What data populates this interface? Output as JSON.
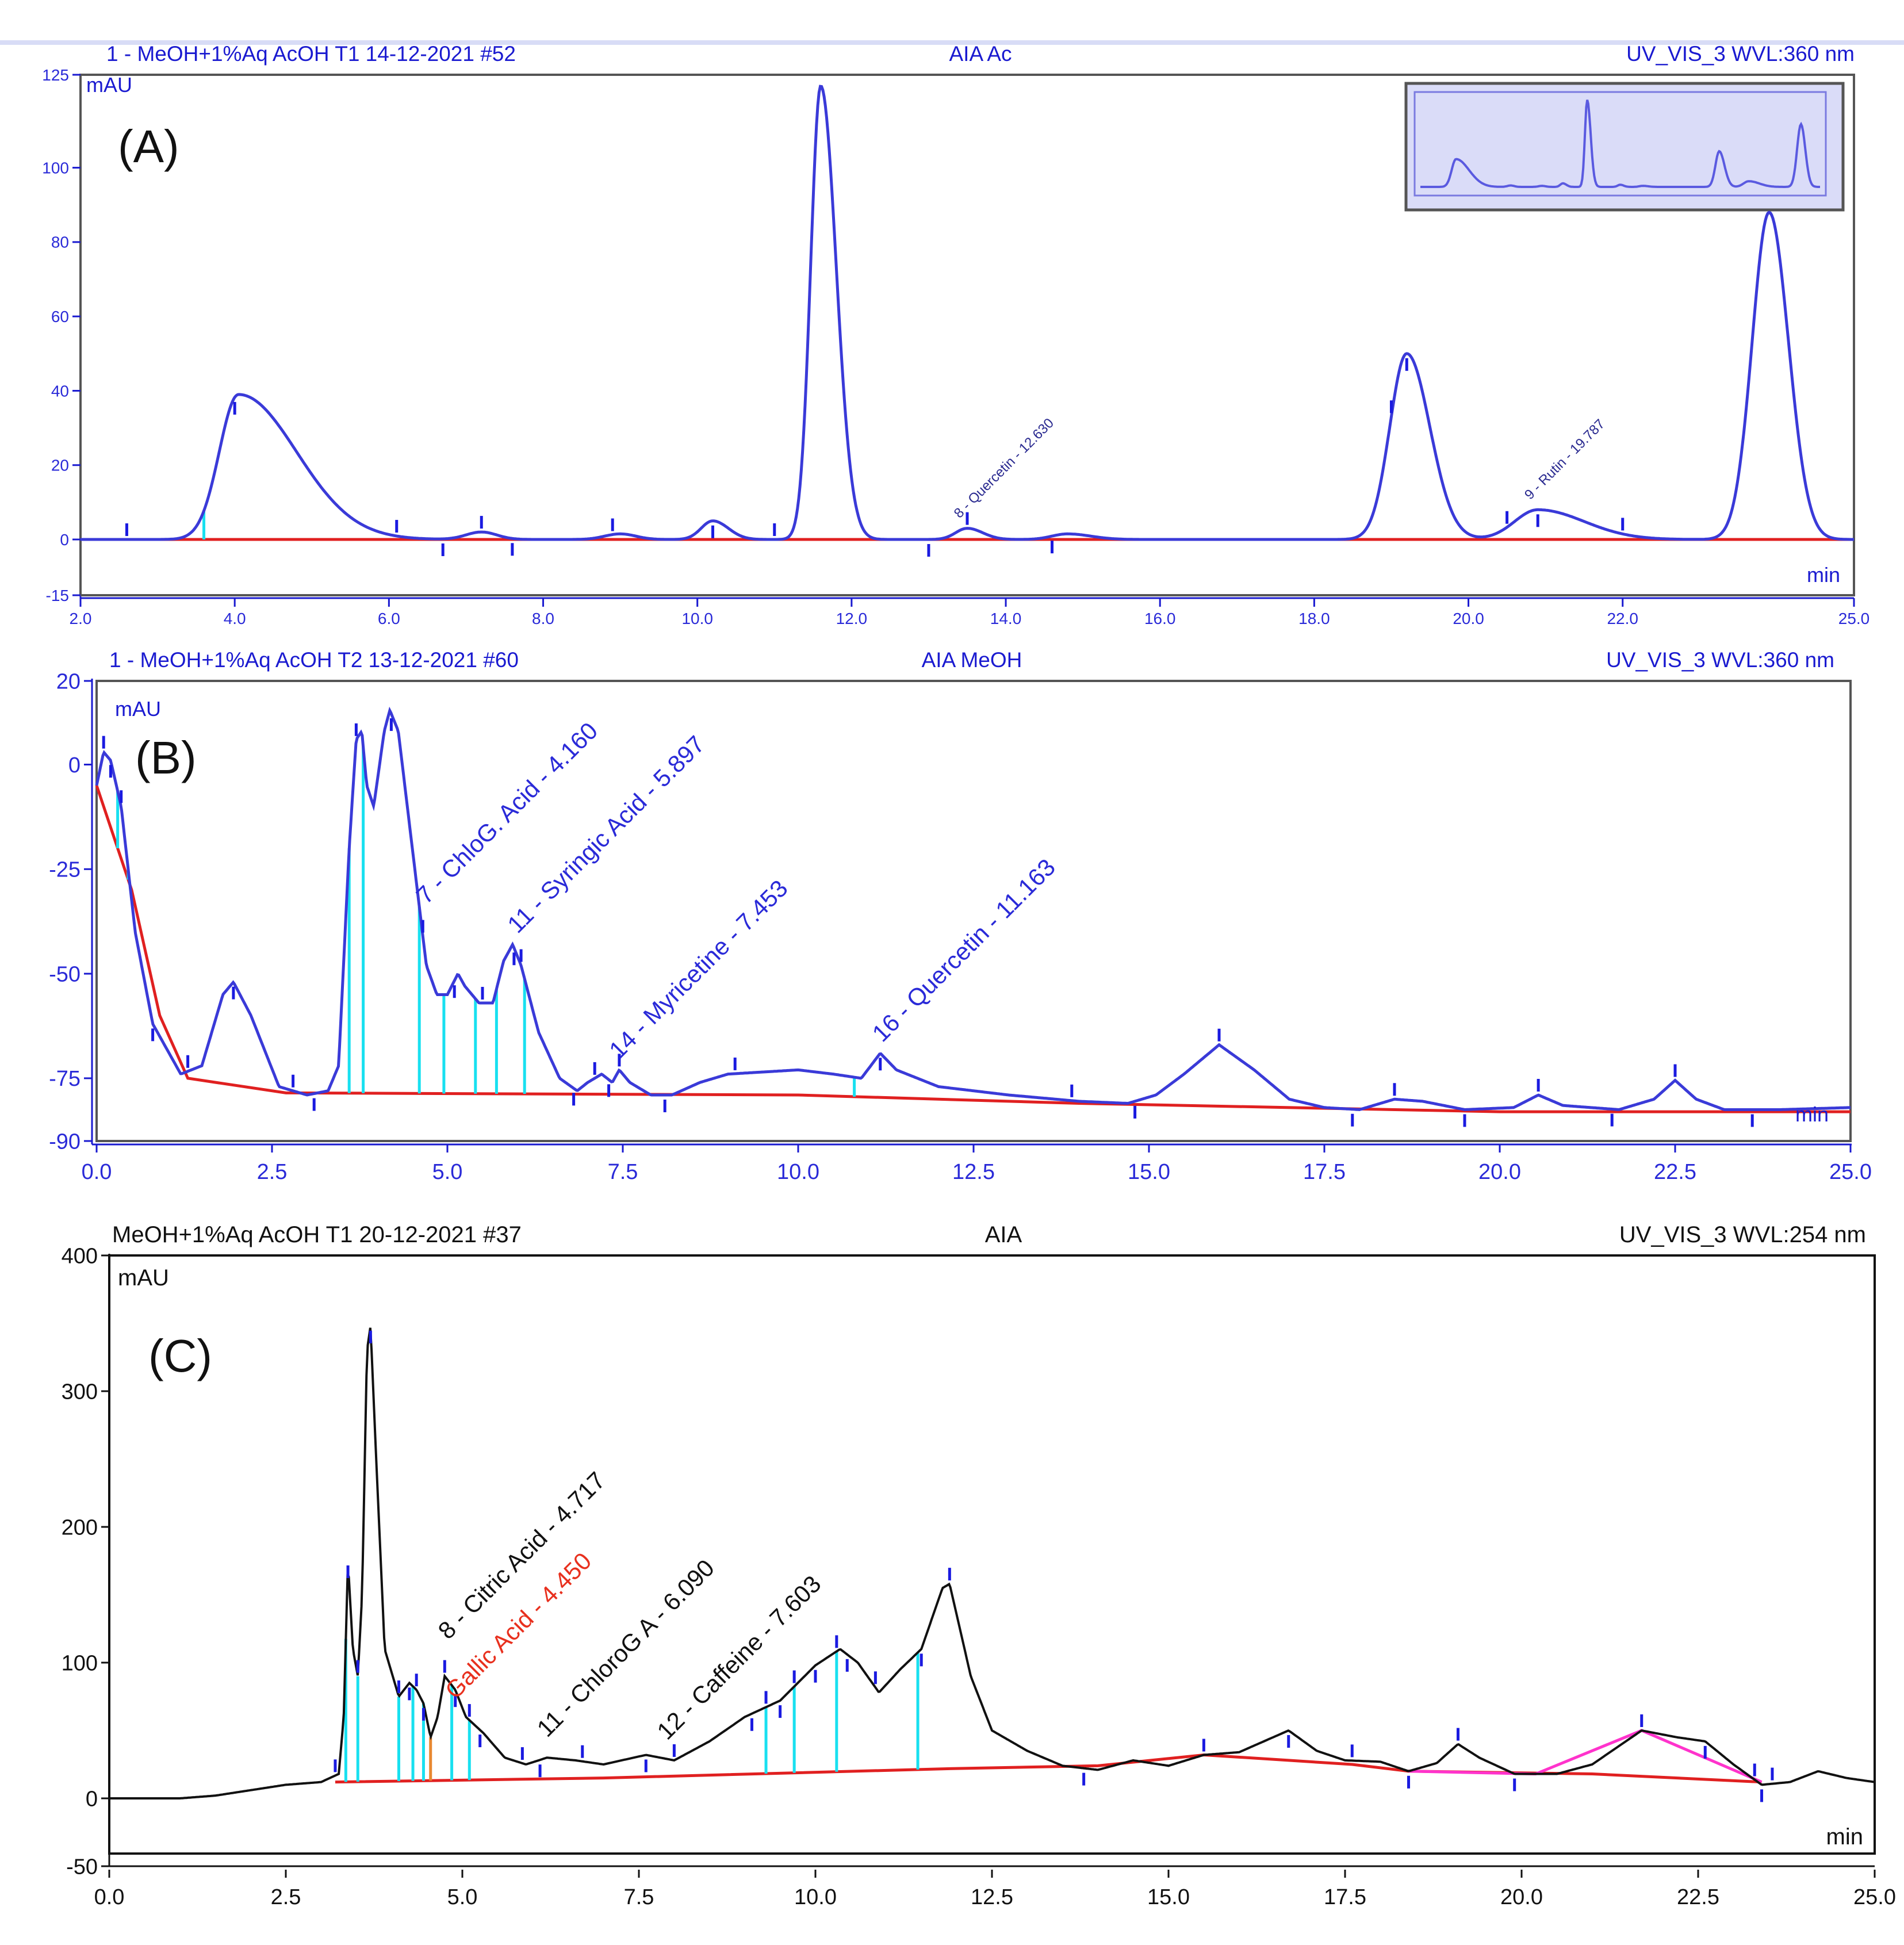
{
  "figure": {
    "colors": {
      "trace_blue": "#3a3ad8",
      "trace_black": "#111111",
      "baseline_red": "#e02020",
      "drop_cyan": "#18e0f0",
      "tick_blue": "#1a1ae0",
      "pink_baseline": "#ff33cc",
      "annotation_red": "#e8301e",
      "inset_fill": "#dadcf8"
    }
  },
  "chart_data": [
    {
      "type": "line",
      "panel": "(A)",
      "header": {
        "left": "1 - MeOH+1%Aq AcOH T1 14-12-2021 #52",
        "center": "AIA Ac",
        "right": "UV_VIS_3 WVL:360 nm"
      },
      "ylabel": "mAU",
      "xlabel": "min",
      "xlim": [
        2.0,
        25.0
      ],
      "ylim": [
        -15,
        125
      ],
      "xticks": [
        2.0,
        4.0,
        6.0,
        8.0,
        10.0,
        12.0,
        14.0,
        16.0,
        18.0,
        20.0,
        22.0,
        25.0
      ],
      "xtick_labels": [
        "2.0",
        "4.0",
        "6.0",
        "8.0",
        "10.0",
        "12.0",
        "14.0",
        "16.0",
        "18.0",
        "20.0",
        "22.0",
        "25.0"
      ],
      "yticks": [
        -15,
        0,
        20,
        40,
        60,
        80,
        100,
        125
      ],
      "ytick_labels": [
        "-15",
        "0",
        "20",
        "40",
        "60",
        "80",
        "100",
        "125"
      ],
      "baseline_y": 0,
      "peaks": [
        {
          "t": 4.05,
          "h": 39,
          "wl": 0.25,
          "wr": 0.75
        },
        {
          "t": 7.2,
          "h": 2,
          "wl": 0.2,
          "wr": 0.2
        },
        {
          "t": 9.0,
          "h": 1.5,
          "wl": 0.2,
          "wr": 0.2
        },
        {
          "t": 10.2,
          "h": 5,
          "wl": 0.15,
          "wr": 0.2
        },
        {
          "t": 11.6,
          "h": 122,
          "wl": 0.13,
          "wr": 0.2
        },
        {
          "t": 13.5,
          "h": 3,
          "wl": 0.15,
          "wr": 0.2
        },
        {
          "t": 14.8,
          "h": 1.5,
          "wl": 0.2,
          "wr": 0.3
        },
        {
          "t": 19.2,
          "h": 50,
          "wl": 0.22,
          "wr": 0.3
        },
        {
          "t": 20.9,
          "h": 8,
          "wl": 0.3,
          "wr": 0.6
        },
        {
          "t": 23.9,
          "h": 88,
          "wl": 0.22,
          "wr": 0.25
        }
      ],
      "drop_lines": [
        3.6
      ],
      "markers": [
        2.6,
        4.0,
        6.1,
        6.7,
        7.2,
        7.6,
        8.9,
        10.2,
        11.0,
        13.0,
        13.5,
        14.6,
        19.0,
        19.2,
        20.5,
        20.9,
        22.0
      ],
      "annotations": [
        {
          "text": "8 - Quercetin - 12.630",
          "t": 13.4,
          "v": 4
        },
        {
          "text": "9 - Rutin - 19.787",
          "t": 20.8,
          "v": 9
        }
      ],
      "inset": {
        "present": true
      }
    },
    {
      "type": "line",
      "panel": "(B)",
      "header": {
        "left": "1 - MeOH+1%Aq AcOH T2 13-12-2021 #60",
        "center": "AIA MeOH",
        "right": "UV_VIS_3 WVL:360 nm"
      },
      "ylabel": "mAU",
      "xlabel": "min",
      "xlim": [
        0.0,
        25.0
      ],
      "ylim": [
        -90,
        20
      ],
      "xticks": [
        0.0,
        2.5,
        5.0,
        7.5,
        10.0,
        12.5,
        15.0,
        17.5,
        20.0,
        22.5,
        25.0
      ],
      "xtick_labels": [
        "0.0",
        "2.5",
        "5.0",
        "7.5",
        "10.0",
        "12.5",
        "15.0",
        "17.5",
        "20.0",
        "22.5",
        "25.0"
      ],
      "yticks": [
        -90,
        -75,
        -50,
        -25,
        0,
        20
      ],
      "ytick_labels": [
        "-90",
        "-75",
        "-50",
        "-25",
        "0",
        "20"
      ],
      "points": [
        [
          0.0,
          -5
        ],
        [
          0.1,
          3
        ],
        [
          0.2,
          1
        ],
        [
          0.35,
          -10
        ],
        [
          0.55,
          -40
        ],
        [
          0.8,
          -62
        ],
        [
          1.2,
          -74
        ],
        [
          1.5,
          -72
        ],
        [
          1.8,
          -55
        ],
        [
          1.95,
          -52
        ],
        [
          2.2,
          -60
        ],
        [
          2.6,
          -77
        ],
        [
          3.0,
          -79
        ],
        [
          3.3,
          -78
        ],
        [
          3.45,
          -72
        ],
        [
          3.6,
          -20
        ],
        [
          3.7,
          6
        ],
        [
          3.78,
          8
        ],
        [
          3.85,
          -5
        ],
        [
          3.95,
          -10
        ],
        [
          4.1,
          8
        ],
        [
          4.18,
          13
        ],
        [
          4.3,
          8
        ],
        [
          4.5,
          -20
        ],
        [
          4.7,
          -48
        ],
        [
          4.85,
          -55
        ],
        [
          5.0,
          -55
        ],
        [
          5.15,
          -50
        ],
        [
          5.25,
          -53
        ],
        [
          5.45,
          -57
        ],
        [
          5.65,
          -57
        ],
        [
          5.8,
          -47
        ],
        [
          5.93,
          -43
        ],
        [
          6.05,
          -48
        ],
        [
          6.3,
          -64
        ],
        [
          6.6,
          -75
        ],
        [
          6.85,
          -78
        ],
        [
          7.0,
          -76
        ],
        [
          7.2,
          -74
        ],
        [
          7.35,
          -76
        ],
        [
          7.45,
          -73
        ],
        [
          7.6,
          -76
        ],
        [
          7.9,
          -79
        ],
        [
          8.2,
          -79
        ],
        [
          8.6,
          -76
        ],
        [
          9.0,
          -74
        ],
        [
          10.0,
          -73
        ],
        [
          10.5,
          -74
        ],
        [
          10.9,
          -75
        ],
        [
          11.17,
          -69
        ],
        [
          11.4,
          -73
        ],
        [
          12.0,
          -77
        ],
        [
          13.0,
          -79
        ],
        [
          14.0,
          -80.5
        ],
        [
          14.7,
          -81
        ],
        [
          15.1,
          -79
        ],
        [
          15.5,
          -74
        ],
        [
          16.0,
          -67
        ],
        [
          16.5,
          -73
        ],
        [
          17.0,
          -80
        ],
        [
          17.5,
          -82
        ],
        [
          18.0,
          -82.5
        ],
        [
          18.5,
          -80
        ],
        [
          18.9,
          -80.5
        ],
        [
          19.5,
          -82.5
        ],
        [
          20.2,
          -82
        ],
        [
          20.55,
          -79
        ],
        [
          20.9,
          -81.5
        ],
        [
          21.7,
          -82.5
        ],
        [
          22.2,
          -80
        ],
        [
          22.5,
          -75.5
        ],
        [
          22.8,
          -80
        ],
        [
          23.2,
          -82.5
        ],
        [
          24.0,
          -82.5
        ],
        [
          25.0,
          -82
        ]
      ],
      "baseline": [
        [
          0.0,
          -5
        ],
        [
          0.5,
          -30
        ],
        [
          0.9,
          -60
        ],
        [
          1.3,
          -75
        ],
        [
          2.7,
          -78.5
        ],
        [
          10.0,
          -79
        ],
        [
          14.0,
          -81
        ],
        [
          20.0,
          -83
        ],
        [
          25.0,
          -83
        ]
      ],
      "drop_lines": [
        0.3,
        0.45,
        3.6,
        3.8,
        4.6,
        4.95,
        5.4,
        5.7,
        6.1,
        10.8
      ],
      "markers": [
        0.1,
        0.2,
        0.35,
        0.8,
        1.3,
        1.95,
        2.8,
        3.1,
        3.7,
        4.2,
        4.65,
        5.1,
        5.5,
        5.95,
        6.05,
        6.8,
        7.1,
        7.3,
        7.45,
        8.1,
        9.1,
        11.17,
        13.9,
        14.8,
        16.0,
        17.9,
        18.5,
        19.5,
        20.55,
        21.6,
        22.5,
        23.6
      ],
      "annotations": [
        {
          "text": "7 - ChloG. Acid - 4.160",
          "t": 4.7,
          "v": -35
        },
        {
          "text": "11 - Syringic Acid - 5.897",
          "t": 6.0,
          "v": -42
        },
        {
          "text": "14 - Myricetine - 7.453",
          "t": 7.45,
          "v": -72
        },
        {
          "text": "16 - Quercetin - 11.163",
          "t": 11.2,
          "v": -68
        }
      ]
    },
    {
      "type": "line",
      "panel": "(C)",
      "header": {
        "left": "MeOH+1%Aq AcOH T1 20-12-2021 #37",
        "center": "AIA",
        "right": "UV_VIS_3 WVL:254 nm"
      },
      "ylabel": "mAU",
      "xlabel": "min",
      "xlim": [
        0.0,
        25.0
      ],
      "ylim": [
        -50,
        400
      ],
      "xticks": [
        0.0,
        2.5,
        5.0,
        7.5,
        10.0,
        12.5,
        15.0,
        17.5,
        20.0,
        22.5,
        25.0
      ],
      "xtick_labels": [
        "0.0",
        "2.5",
        "5.0",
        "7.5",
        "10.0",
        "12.5",
        "15.0",
        "17.5",
        "20.0",
        "22.5",
        "25.0"
      ],
      "yticks": [
        -50,
        0,
        100,
        200,
        300,
        400
      ],
      "ytick_labels": [
        "-50",
        "0",
        "100",
        "200",
        "300",
        "400"
      ],
      "points": [
        [
          0.0,
          0
        ],
        [
          1.0,
          0
        ],
        [
          1.5,
          2
        ],
        [
          2.0,
          6
        ],
        [
          2.5,
          10
        ],
        [
          3.0,
          12
        ],
        [
          3.25,
          18
        ],
        [
          3.32,
          60
        ],
        [
          3.38,
          175
        ],
        [
          3.45,
          110
        ],
        [
          3.52,
          90
        ],
        [
          3.58,
          150
        ],
        [
          3.65,
          330
        ],
        [
          3.7,
          348
        ],
        [
          3.78,
          250
        ],
        [
          3.9,
          110
        ],
        [
          4.1,
          75
        ],
        [
          4.25,
          85
        ],
        [
          4.35,
          80
        ],
        [
          4.45,
          70
        ],
        [
          4.55,
          45
        ],
        [
          4.65,
          60
        ],
        [
          4.75,
          90
        ],
        [
          4.9,
          80
        ],
        [
          5.05,
          60
        ],
        [
          5.3,
          48
        ],
        [
          5.6,
          30
        ],
        [
          5.9,
          25
        ],
        [
          6.2,
          30
        ],
        [
          6.6,
          28
        ],
        [
          7.0,
          25
        ],
        [
          7.6,
          32
        ],
        [
          8.0,
          28
        ],
        [
          8.5,
          42
        ],
        [
          9.0,
          60
        ],
        [
          9.5,
          72
        ],
        [
          10.0,
          98
        ],
        [
          10.35,
          110
        ],
        [
          10.6,
          100
        ],
        [
          10.9,
          78
        ],
        [
          11.2,
          95
        ],
        [
          11.5,
          110
        ],
        [
          11.8,
          155
        ],
        [
          11.9,
          158
        ],
        [
          12.2,
          90
        ],
        [
          12.5,
          50
        ],
        [
          13.0,
          35
        ],
        [
          13.5,
          24
        ],
        [
          14.0,
          21
        ],
        [
          14.5,
          28
        ],
        [
          15.0,
          24
        ],
        [
          15.5,
          32
        ],
        [
          16.0,
          34
        ],
        [
          16.7,
          50
        ],
        [
          17.1,
          35
        ],
        [
          17.5,
          28
        ],
        [
          18.0,
          27
        ],
        [
          18.4,
          20
        ],
        [
          18.8,
          26
        ],
        [
          19.1,
          40
        ],
        [
          19.4,
          30
        ],
        [
          19.9,
          18
        ],
        [
          20.5,
          18
        ],
        [
          21.0,
          25
        ],
        [
          21.7,
          50
        ],
        [
          22.2,
          45
        ],
        [
          22.6,
          42
        ],
        [
          23.0,
          25
        ],
        [
          23.4,
          10
        ],
        [
          23.8,
          12
        ],
        [
          24.2,
          20
        ],
        [
          24.6,
          15
        ],
        [
          25.0,
          12
        ]
      ],
      "baseline": [
        [
          3.2,
          12
        ],
        [
          7.0,
          15
        ],
        [
          12.0,
          22
        ],
        [
          14.0,
          24
        ],
        [
          15.5,
          32
        ],
        [
          16.7,
          28
        ],
        [
          17.6,
          25
        ],
        [
          18.4,
          20
        ],
        [
          21.0,
          18
        ],
        [
          23.4,
          12
        ]
      ],
      "pink_baseline": [
        [
          18.4,
          20
        ],
        [
          20.2,
          18
        ],
        [
          21.7,
          50
        ],
        [
          23.4,
          12
        ]
      ],
      "drop_lines": [
        3.35,
        3.52,
        4.1,
        4.3,
        4.45,
        4.55,
        4.85,
        5.1,
        9.3,
        9.7,
        10.3,
        11.45
      ],
      "orange_drop": 4.55,
      "markers": [
        3.2,
        3.38,
        3.52,
        3.7,
        4.1,
        4.25,
        4.35,
        4.45,
        4.75,
        4.9,
        5.1,
        5.25,
        5.85,
        6.1,
        6.7,
        7.6,
        8.0,
        9.1,
        9.3,
        9.5,
        9.7,
        10.0,
        10.3,
        10.45,
        10.85,
        11.5,
        11.9,
        13.8,
        15.5,
        16.7,
        17.6,
        18.4,
        19.1,
        19.9,
        21.7,
        22.6,
        23.3,
        23.4,
        23.55
      ],
      "annotations": [
        {
          "text": "8 - Citric Acid - 4.717",
          "t": 4.8,
          "v": 112,
          "color": "black"
        },
        {
          "text": "Gallic Acid - 4.450",
          "t": 4.9,
          "v": 68,
          "color": "red"
        },
        {
          "text": "11 - ChloroG A - 6.090",
          "t": 6.2,
          "v": 40,
          "color": "black"
        },
        {
          "text": "12 - Caffeine - 7.603",
          "t": 7.9,
          "v": 38,
          "color": "black"
        }
      ]
    }
  ]
}
